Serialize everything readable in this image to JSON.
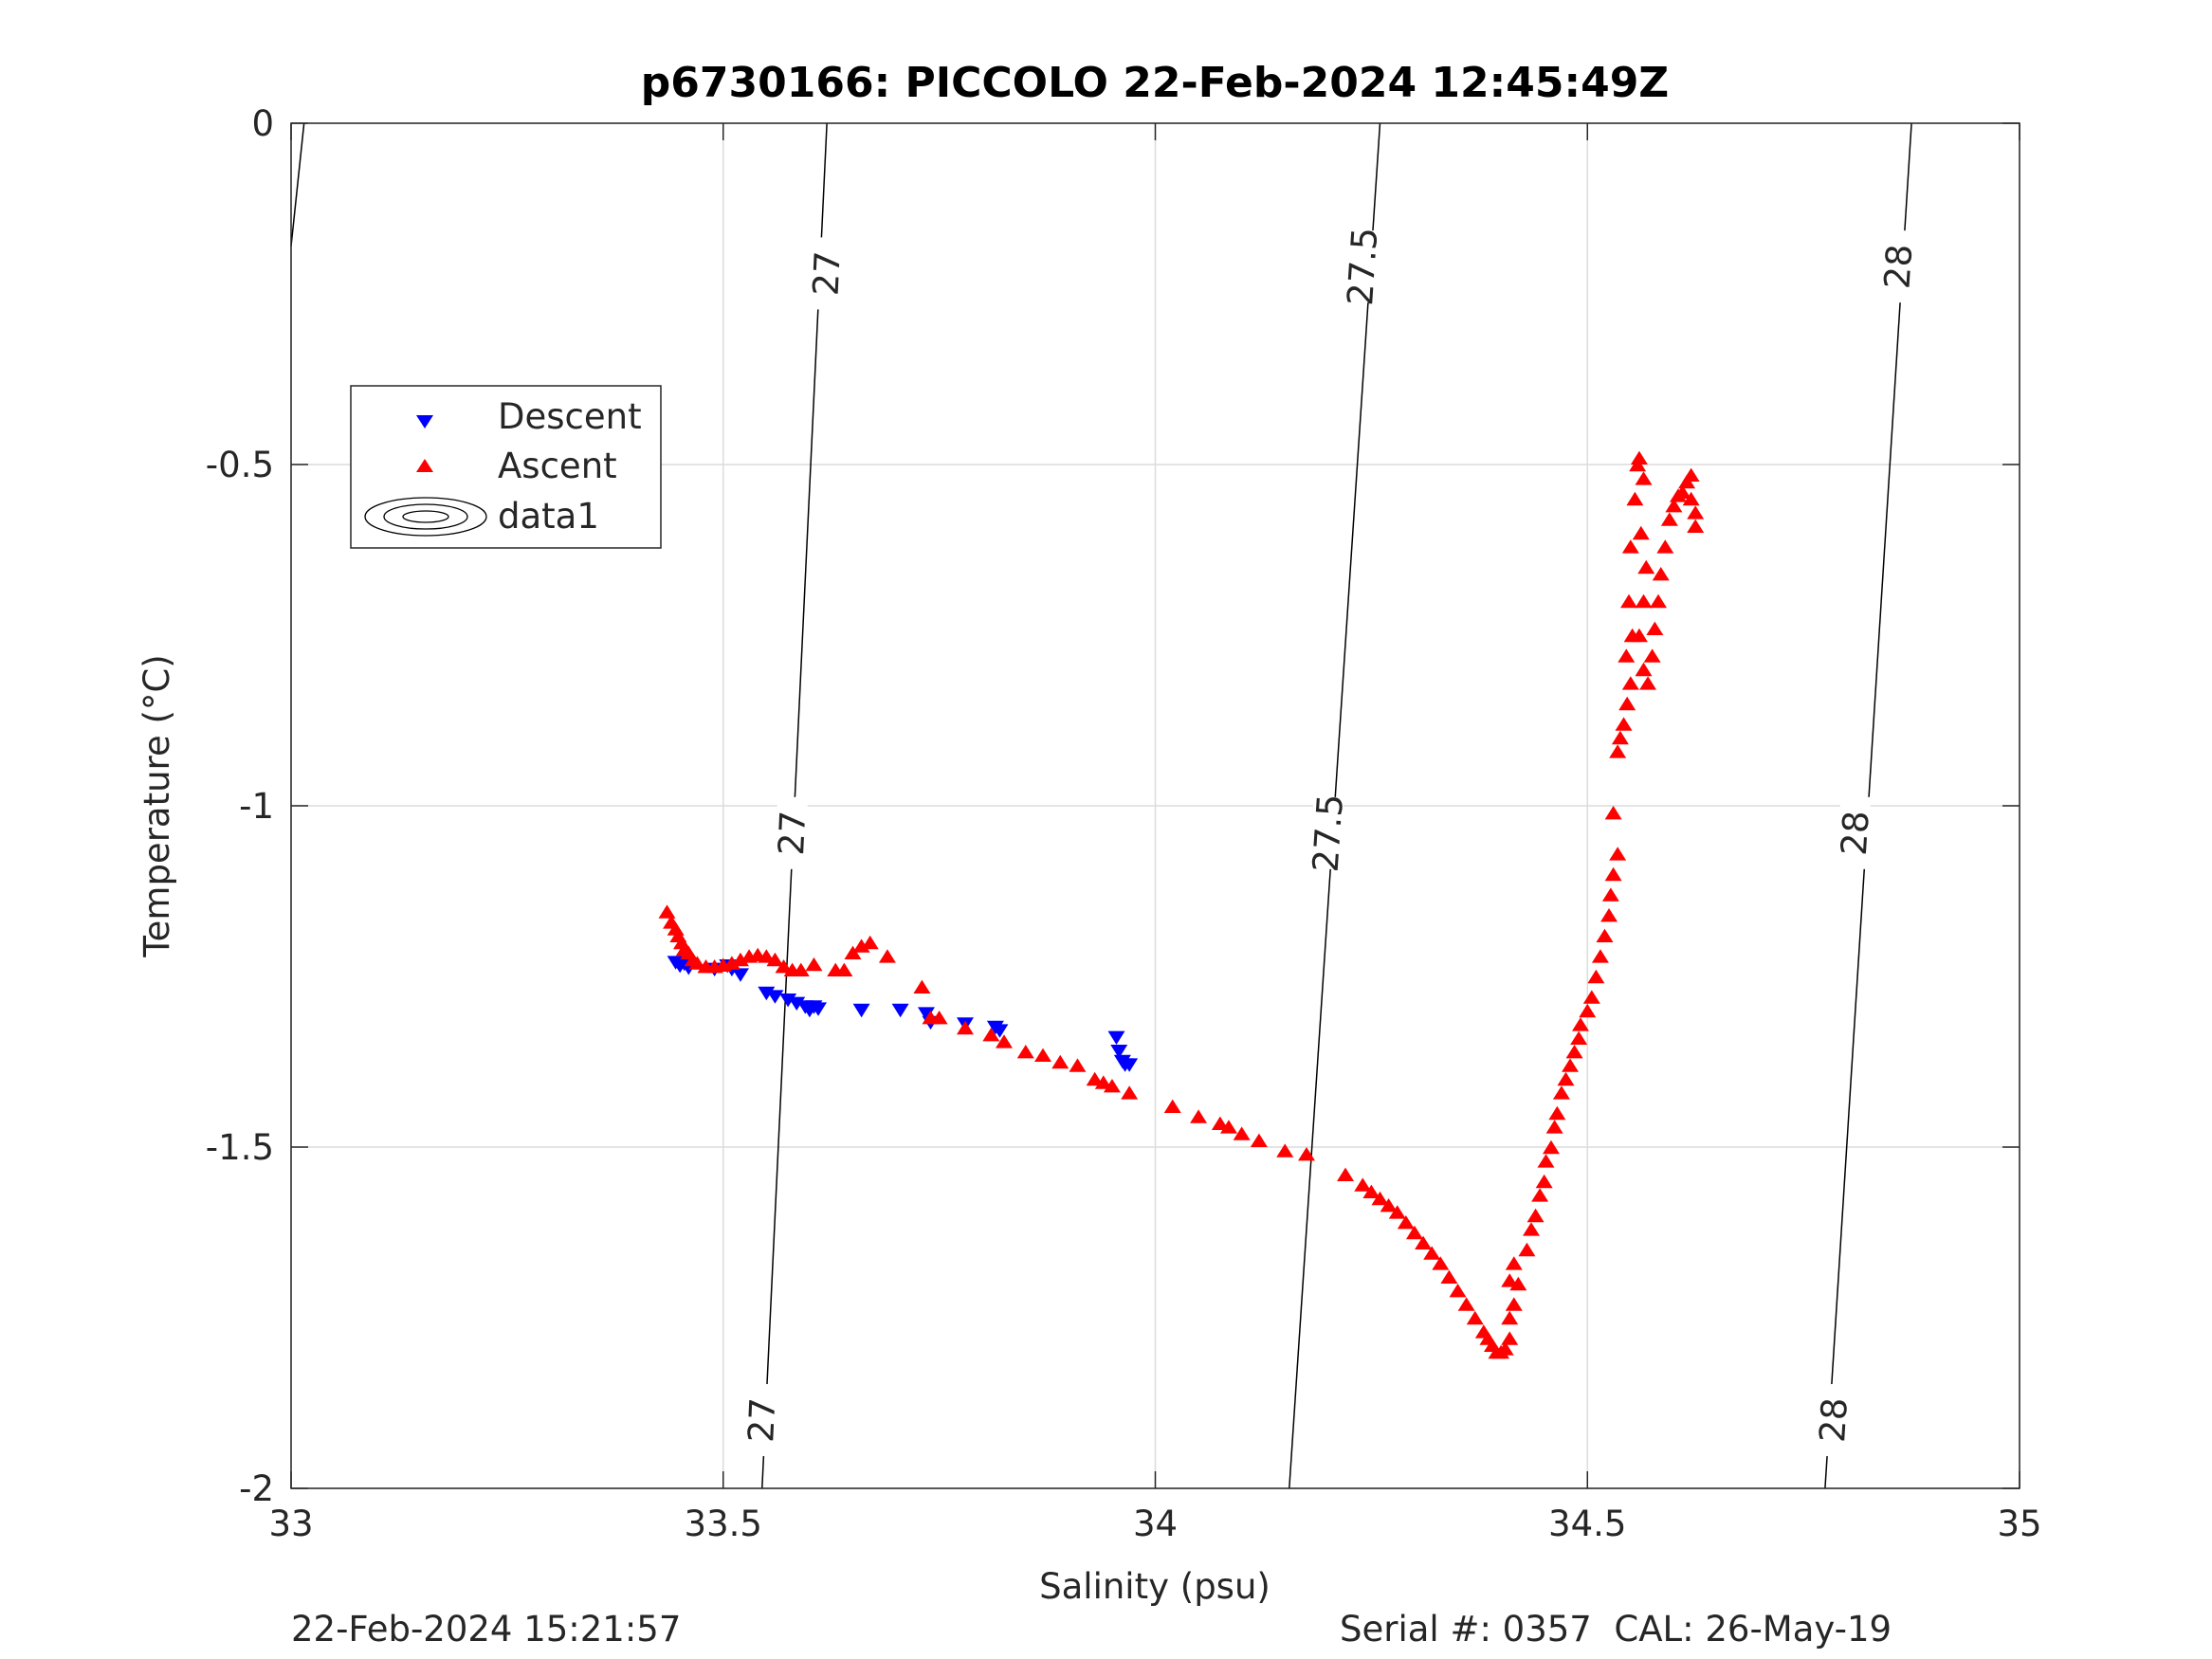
{
  "chart_data": {
    "type": "scatter",
    "title": "p6730166: PICCOLO 22-Feb-2024 12:45:49Z",
    "xlabel": "Salinity (psu)",
    "ylabel": "Temperature (°C)",
    "xlim": [
      33,
      35
    ],
    "ylim": [
      -2,
      0
    ],
    "xticks": [
      "33",
      "33.5",
      "34",
      "34.5",
      "35"
    ],
    "yticks": [
      "0",
      "-0.5",
      "-1",
      "-1.5",
      "-2"
    ],
    "grid": true,
    "legend_position": "upper-left",
    "legend": [
      "Descent",
      "Ascent",
      "data1"
    ],
    "footer_left": "22-Feb-2024 15:21:57",
    "footer_right": "Serial #: 0357  CAL: 26-May-19",
    "contours": [
      {
        "level": "27",
        "points": [
          [
            33.545,
            -2
          ],
          [
            33.62,
            0
          ]
        ],
        "labels": [
          {
            "x": 33.545,
            "y": -1.9
          },
          {
            "x": 33.58,
            "y": -1.04
          },
          {
            "x": 33.62,
            "y": -0.22
          }
        ]
      },
      {
        "level": "27.5",
        "points": [
          [
            34.155,
            -2
          ],
          [
            34.26,
            0
          ]
        ],
        "labels": [
          {
            "x": 34.2,
            "y": -1.04
          },
          {
            "x": 34.24,
            "y": -0.21
          }
        ]
      },
      {
        "level": "28",
        "points": [
          [
            34.775,
            -2
          ],
          [
            34.875,
            0
          ]
        ],
        "labels": [
          {
            "x": 34.785,
            "y": -1.9
          },
          {
            "x": 34.81,
            "y": -1.04
          },
          {
            "x": 34.86,
            "y": -0.21
          }
        ]
      }
    ],
    "extra_contour": [
      [
        33,
        -0.18
      ],
      [
        33.015,
        0
      ]
    ],
    "series": [
      {
        "name": "Descent",
        "marker": "triangle-down",
        "color": "#0000ff",
        "points": [
          [
            33.445,
            -1.23
          ],
          [
            33.45,
            -1.235
          ],
          [
            33.455,
            -1.232
          ],
          [
            33.46,
            -1.238
          ],
          [
            33.49,
            -1.24
          ],
          [
            33.505,
            -1.235
          ],
          [
            33.51,
            -1.24
          ],
          [
            33.52,
            -1.248
          ],
          [
            33.55,
            -1.275
          ],
          [
            33.56,
            -1.28
          ],
          [
            33.575,
            -1.285
          ],
          [
            33.585,
            -1.29
          ],
          [
            33.595,
            -1.295
          ],
          [
            33.6,
            -1.3
          ],
          [
            33.61,
            -1.298
          ],
          [
            33.605,
            -1.295
          ],
          [
            33.66,
            -1.3
          ],
          [
            33.705,
            -1.3
          ],
          [
            33.735,
            -1.305
          ],
          [
            33.74,
            -1.318
          ],
          [
            33.78,
            -1.32
          ],
          [
            33.815,
            -1.325
          ],
          [
            33.82,
            -1.33
          ],
          [
            33.955,
            -1.34
          ],
          [
            33.958,
            -1.36
          ],
          [
            33.962,
            -1.375
          ],
          [
            33.965,
            -1.38
          ],
          [
            33.97,
            -1.38
          ]
        ]
      },
      {
        "name": "Ascent",
        "marker": "triangle-up",
        "color": "#ff0000",
        "points": [
          [
            33.435,
            -1.155
          ],
          [
            33.44,
            -1.17
          ],
          [
            33.445,
            -1.18
          ],
          [
            33.448,
            -1.19
          ],
          [
            33.452,
            -1.2
          ],
          [
            33.455,
            -1.21
          ],
          [
            33.46,
            -1.215
          ],
          [
            33.465,
            -1.225
          ],
          [
            33.47,
            -1.23
          ],
          [
            33.48,
            -1.235
          ],
          [
            33.49,
            -1.235
          ],
          [
            33.5,
            -1.233
          ],
          [
            33.51,
            -1.23
          ],
          [
            33.52,
            -1.225
          ],
          [
            33.53,
            -1.22
          ],
          [
            33.54,
            -1.218
          ],
          [
            33.55,
            -1.22
          ],
          [
            33.56,
            -1.225
          ],
          [
            33.57,
            -1.235
          ],
          [
            33.58,
            -1.24
          ],
          [
            33.59,
            -1.24
          ],
          [
            33.605,
            -1.232
          ],
          [
            33.63,
            -1.24
          ],
          [
            33.64,
            -1.24
          ],
          [
            33.65,
            -1.215
          ],
          [
            33.66,
            -1.205
          ],
          [
            33.67,
            -1.2
          ],
          [
            33.69,
            -1.22
          ],
          [
            33.73,
            -1.265
          ],
          [
            33.74,
            -1.31
          ],
          [
            33.75,
            -1.31
          ],
          [
            33.78,
            -1.325
          ],
          [
            33.81,
            -1.335
          ],
          [
            33.825,
            -1.345
          ],
          [
            33.85,
            -1.36
          ],
          [
            33.87,
            -1.365
          ],
          [
            33.89,
            -1.375
          ],
          [
            33.91,
            -1.38
          ],
          [
            33.93,
            -1.4
          ],
          [
            33.94,
            -1.405
          ],
          [
            33.95,
            -1.41
          ],
          [
            33.97,
            -1.42
          ],
          [
            34.02,
            -1.44
          ],
          [
            34.05,
            -1.455
          ],
          [
            34.075,
            -1.465
          ],
          [
            34.085,
            -1.47
          ],
          [
            34.1,
            -1.48
          ],
          [
            34.12,
            -1.49
          ],
          [
            34.15,
            -1.505
          ],
          [
            34.175,
            -1.51
          ],
          [
            34.22,
            -1.54
          ],
          [
            34.24,
            -1.555
          ],
          [
            34.25,
            -1.565
          ],
          [
            34.26,
            -1.575
          ],
          [
            34.27,
            -1.585
          ],
          [
            34.28,
            -1.595
          ],
          [
            34.29,
            -1.61
          ],
          [
            34.3,
            -1.625
          ],
          [
            34.31,
            -1.64
          ],
          [
            34.32,
            -1.655
          ],
          [
            34.33,
            -1.67
          ],
          [
            34.34,
            -1.69
          ],
          [
            34.35,
            -1.71
          ],
          [
            34.36,
            -1.73
          ],
          [
            34.37,
            -1.75
          ],
          [
            34.38,
            -1.77
          ],
          [
            34.385,
            -1.78
          ],
          [
            34.39,
            -1.79
          ],
          [
            34.395,
            -1.8
          ],
          [
            34.4,
            -1.8
          ],
          [
            34.405,
            -1.795
          ],
          [
            34.41,
            -1.78
          ],
          [
            34.41,
            -1.75
          ],
          [
            34.415,
            -1.73
          ],
          [
            34.42,
            -1.7
          ],
          [
            34.41,
            -1.695
          ],
          [
            34.415,
            -1.67
          ],
          [
            34.43,
            -1.65
          ],
          [
            34.435,
            -1.62
          ],
          [
            34.44,
            -1.6
          ],
          [
            34.445,
            -1.57
          ],
          [
            34.45,
            -1.55
          ],
          [
            34.452,
            -1.52
          ],
          [
            34.458,
            -1.5
          ],
          [
            34.462,
            -1.47
          ],
          [
            34.465,
            -1.45
          ],
          [
            34.47,
            -1.42
          ],
          [
            34.475,
            -1.4
          ],
          [
            34.48,
            -1.38
          ],
          [
            34.485,
            -1.36
          ],
          [
            34.49,
            -1.34
          ],
          [
            34.492,
            -1.32
          ],
          [
            34.5,
            -1.3
          ],
          [
            34.505,
            -1.28
          ],
          [
            34.51,
            -1.25
          ],
          [
            34.515,
            -1.22
          ],
          [
            34.52,
            -1.19
          ],
          [
            34.525,
            -1.16
          ],
          [
            34.527,
            -1.13
          ],
          [
            34.53,
            -1.1
          ],
          [
            34.535,
            -1.07
          ],
          [
            34.53,
            -1.01
          ],
          [
            34.535,
            -0.92
          ],
          [
            34.538,
            -0.9
          ],
          [
            34.542,
            -0.88
          ],
          [
            34.546,
            -0.85
          ],
          [
            34.55,
            -0.82
          ],
          [
            34.545,
            -0.78
          ],
          [
            34.552,
            -0.75
          ],
          [
            34.548,
            -0.7
          ],
          [
            34.55,
            -0.62
          ],
          [
            34.555,
            -0.55
          ],
          [
            34.558,
            -0.5
          ],
          [
            34.56,
            -0.49
          ],
          [
            34.565,
            -0.52
          ],
          [
            34.562,
            -0.6
          ],
          [
            34.568,
            -0.65
          ],
          [
            34.565,
            -0.7
          ],
          [
            34.56,
            -0.75
          ],
          [
            34.565,
            -0.8
          ],
          [
            34.57,
            -0.82
          ],
          [
            34.575,
            -0.78
          ],
          [
            34.578,
            -0.74
          ],
          [
            34.582,
            -0.7
          ],
          [
            34.585,
            -0.66
          ],
          [
            34.59,
            -0.62
          ],
          [
            34.595,
            -0.58
          ],
          [
            34.6,
            -0.56
          ],
          [
            34.605,
            -0.545
          ],
          [
            34.61,
            -0.54
          ],
          [
            34.615,
            -0.525
          ],
          [
            34.62,
            -0.515
          ],
          [
            34.62,
            -0.55
          ],
          [
            34.625,
            -0.57
          ],
          [
            34.625,
            -0.59
          ]
        ]
      }
    ]
  }
}
